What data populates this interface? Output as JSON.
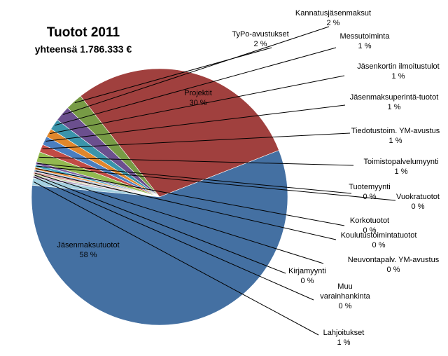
{
  "chart_data": {
    "type": "pie",
    "title": "Tuotot 2011",
    "subtitle": "yhteensä 1.786.333 €",
    "slices": [
      {
        "name": "Projektit",
        "label": "30 %",
        "value": 30.0,
        "color": "#a0403e"
      },
      {
        "name": "TyPo-avustukset",
        "label": "2 %",
        "value": 2.2,
        "color": "#779b45"
      },
      {
        "name": "Kannatusjäsenmaksut",
        "label": "2 %",
        "value": 2.0,
        "color": "#6b4f8e"
      },
      {
        "name": "Messutoiminta",
        "label": "1 %",
        "value": 1.4,
        "color": "#3a94ab"
      },
      {
        "name": "Jäsenkortin ilmoitustulot",
        "label": "1 %",
        "value": 1.1,
        "color": "#e0872c"
      },
      {
        "name": "Jäsenmaksuperintä-tuotot",
        "label": "1 %",
        "value": 1.1,
        "color": "#4a7ec0"
      },
      {
        "name": "Tiedotustoim. YM-avustus",
        "label": "1 %",
        "value": 1.0,
        "color": "#c24b45"
      },
      {
        "name": "Toimistopalvelumyynti",
        "label": "1 %",
        "value": 1.3,
        "color": "#93b950"
      },
      {
        "name": "Tuotemyynti",
        "label": "0 %",
        "value": 0.35,
        "color": "#7c5fa3"
      },
      {
        "name": "Vuokratuotot",
        "label": "0 %",
        "value": 0.35,
        "color": "#47aac5"
      },
      {
        "name": "Korkotuotot",
        "label": "0 %",
        "value": 0.3,
        "color": "#ef9440"
      },
      {
        "name": "Koulutustoimintatuotot",
        "label": "0 %",
        "value": 0.3,
        "color": "#9db7da"
      },
      {
        "name": "Neuvontapalv. YM-avustus",
        "label": "0 %",
        "value": 0.3,
        "color": "#dba09e"
      },
      {
        "name": "Kirjamyynti",
        "label": "0 %",
        "value": 0.2,
        "color": "#c3d69b"
      },
      {
        "name": "Muu varainhankinta",
        "label": "0 %",
        "value": 0.3,
        "color": "#b3a2c7"
      },
      {
        "name": "Lahjoitukset",
        "label": "1 %",
        "value": 0.9,
        "color": "#a5d1e0"
      },
      {
        "name": "Jäsenmaksutuotot",
        "label": "58 %",
        "value": 58.0,
        "color": "#4470a2"
      }
    ]
  }
}
